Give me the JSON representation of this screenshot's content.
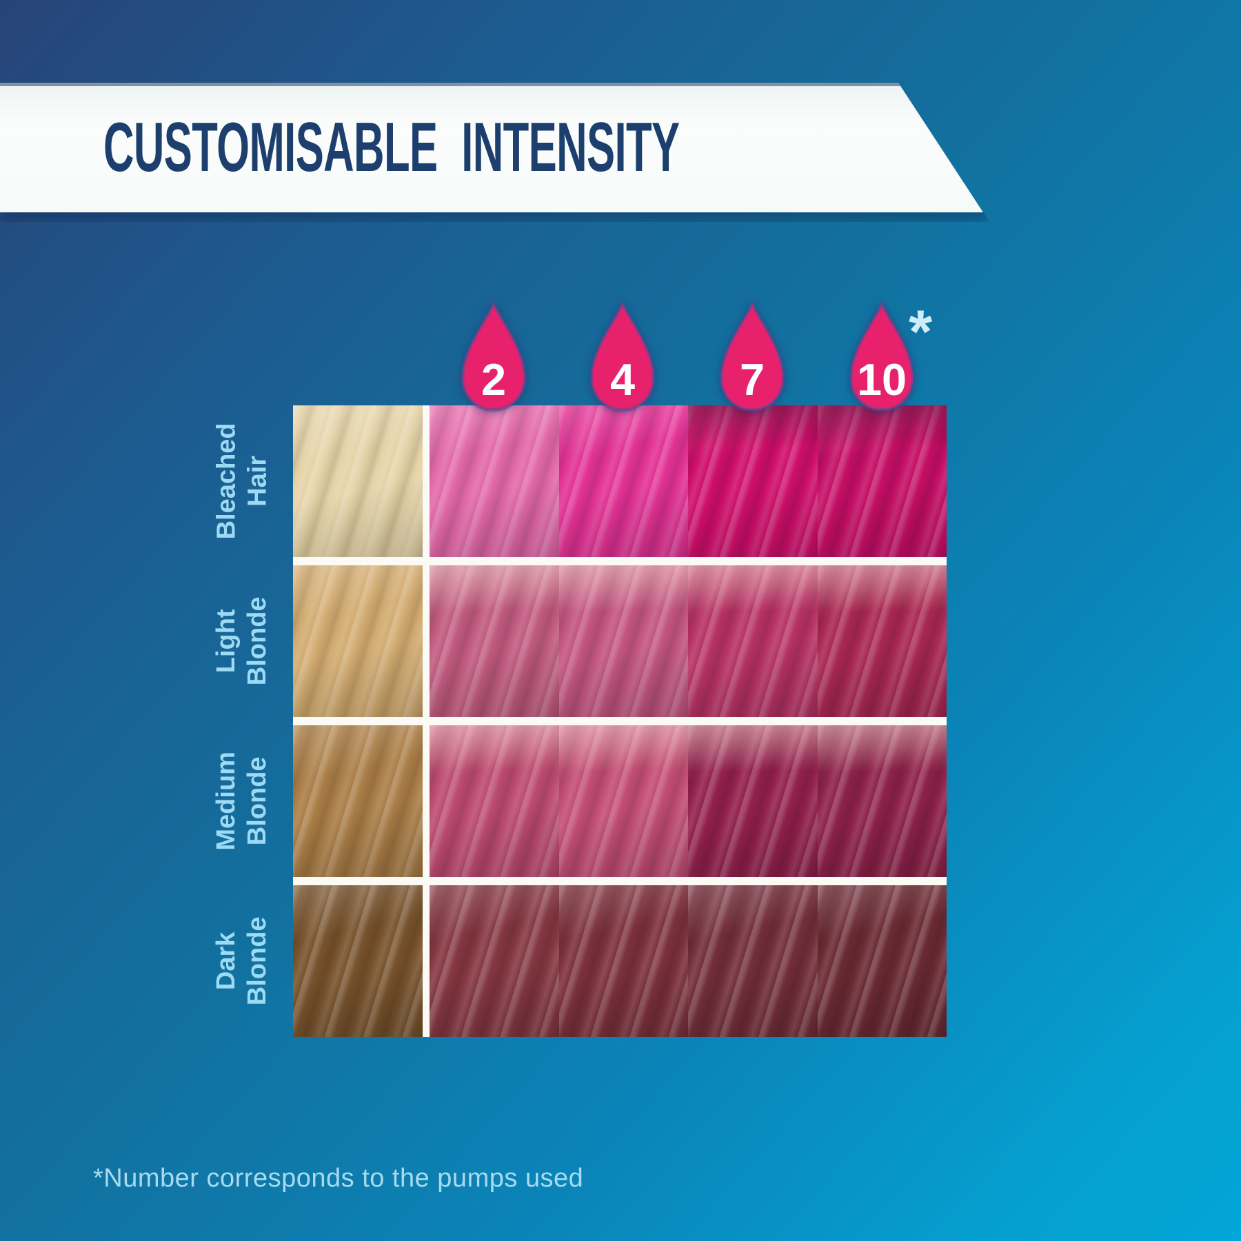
{
  "title": "CUSTOMISABLE INTENSITY",
  "footnote": "*Number corresponds to the pumps used",
  "asterisk": "*",
  "style": {
    "droplet_pink": "#e8216d",
    "droplet_outline": "#454f95",
    "droplet_number_color": "#ffffff",
    "banner_bg": "#f8fbfa",
    "title_navy": "#1c3f6e",
    "row_label_blue": "#9edaf3",
    "footnote_blue": "#a7daef",
    "background_top_left": "#274478",
    "background_bottom_right": "#02a6d7",
    "separator_white": "#fbfaf4"
  },
  "chart_data": {
    "type": "heatmap",
    "title": "CUSTOMISABLE INTENSITY",
    "legend_position": "top",
    "column_unit": "pumps",
    "pump_labels": [
      "2",
      "4",
      "7",
      "10"
    ],
    "rows": [
      {
        "label": "Bleached\nHair",
        "base": "#e5d3a7",
        "swatches": [
          "#e268a9",
          "#e23295",
          "#ce0e6b",
          "#c40e66"
        ]
      },
      {
        "label": "Light\nBlonde",
        "base": "#d2ab70",
        "swatches": [
          "#c05a7e",
          "#c25580",
          "#b63264",
          "#a82753"
        ]
      },
      {
        "label": "Medium\nBlonde",
        "base": "#aa7d46",
        "swatches": [
          "#bc4a70",
          "#c24d75",
          "#92204c",
          "#8d2149"
        ]
      },
      {
        "label": "Dark\nBlonde",
        "base": "#77522c",
        "swatches": [
          "#843741",
          "#7c313c",
          "#722e39",
          "#6a2a33"
        ]
      }
    ],
    "footnote": "*Number corresponds to the pumps used"
  }
}
